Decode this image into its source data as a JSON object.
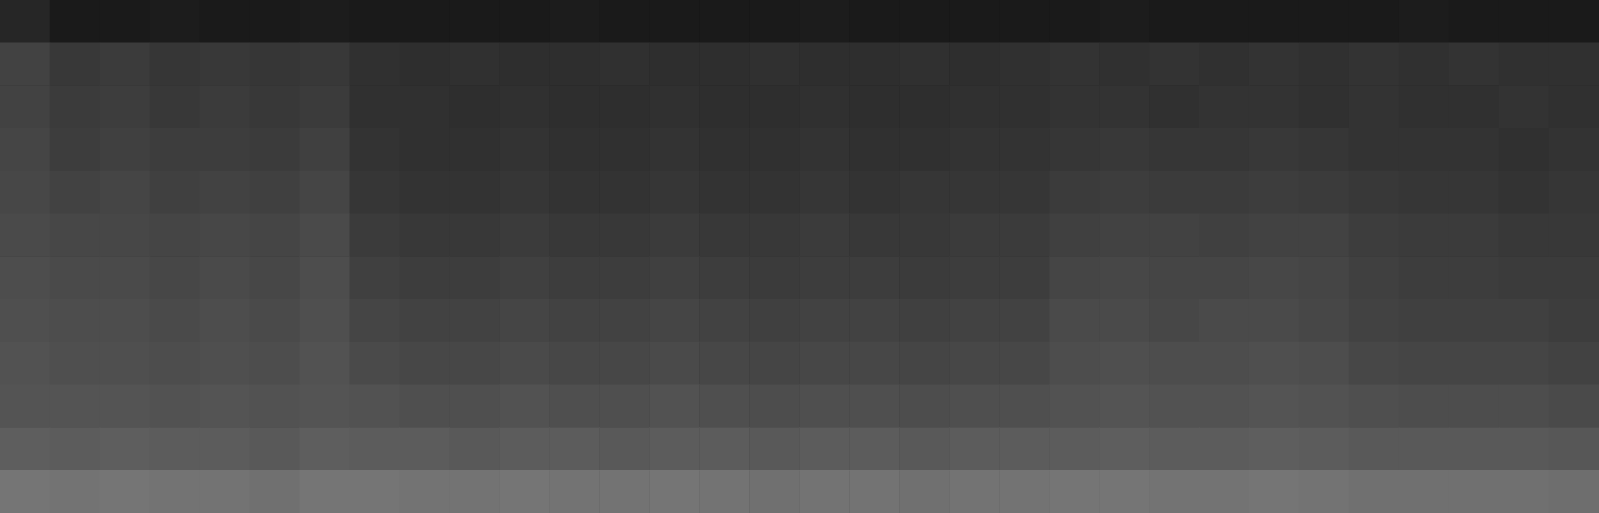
{
  "chart_data": {
    "type": "heatmap",
    "tick_labels": false,
    "grid": false,
    "zlim": [
      0,
      10
    ],
    "cells": [
      [
        1.5,
        1.0,
        1.0,
        1.1,
        1.0,
        1.0,
        1.1,
        1.0,
        1.0,
        1.0,
        1.0,
        1.1,
        1.0,
        1.0,
        1.0,
        1.0,
        1.1,
        1.0,
        1.0,
        1.0,
        1.0,
        1.0,
        1.1,
        1.0,
        1.0,
        1.0,
        1.0,
        1.0,
        1.1,
        1.0,
        1.0,
        1.0
      ],
      [
        2.6,
        2.2,
        2.3,
        2.1,
        2.2,
        2.1,
        2.2,
        1.9,
        1.8,
        1.9,
        1.8,
        1.8,
        1.9,
        1.8,
        1.8,
        1.9,
        1.8,
        1.8,
        1.9,
        1.8,
        1.9,
        2.0,
        1.9,
        2.0,
        1.9,
        2.0,
        1.9,
        2.0,
        1.9,
        2.0,
        1.9,
        1.9
      ],
      [
        2.6,
        2.3,
        2.4,
        2.2,
        2.3,
        2.2,
        2.3,
        1.9,
        1.9,
        1.8,
        1.9,
        1.8,
        1.8,
        1.9,
        1.8,
        1.8,
        1.9,
        1.8,
        1.8,
        1.9,
        1.9,
        2.0,
        2.0,
        1.9,
        2.0,
        2.0,
        1.9,
        2.0,
        1.9,
        1.9,
        2.0,
        1.9
      ],
      [
        2.7,
        2.4,
        2.5,
        2.4,
        2.4,
        2.3,
        2.5,
        2.0,
        1.9,
        1.9,
        2.0,
        1.9,
        1.9,
        2.0,
        1.9,
        1.9,
        2.0,
        1.9,
        1.9,
        2.0,
        2.0,
        2.1,
        2.2,
        2.1,
        2.1,
        2.2,
        2.1,
        2.0,
        2.0,
        2.0,
        1.9,
        2.0
      ],
      [
        2.8,
        2.6,
        2.7,
        2.5,
        2.6,
        2.5,
        2.7,
        2.1,
        2.0,
        2.0,
        2.1,
        2.0,
        2.0,
        2.1,
        2.0,
        2.0,
        2.1,
        2.0,
        2.1,
        2.1,
        2.1,
        2.3,
        2.4,
        2.3,
        2.3,
        2.4,
        2.3,
        2.2,
        2.1,
        2.1,
        2.0,
        2.1
      ],
      [
        2.9,
        2.8,
        2.8,
        2.7,
        2.8,
        2.7,
        2.9,
        2.3,
        2.2,
        2.2,
        2.3,
        2.2,
        2.2,
        2.3,
        2.2,
        2.2,
        2.3,
        2.2,
        2.2,
        2.3,
        2.3,
        2.5,
        2.6,
        2.6,
        2.5,
        2.6,
        2.6,
        2.4,
        2.3,
        2.3,
        2.2,
        2.2
      ],
      [
        3.0,
        2.9,
        2.9,
        2.8,
        2.9,
        2.8,
        3.0,
        2.5,
        2.4,
        2.4,
        2.5,
        2.4,
        2.4,
        2.5,
        2.4,
        2.3,
        2.4,
        2.4,
        2.3,
        2.4,
        2.4,
        2.7,
        2.8,
        2.7,
        2.7,
        2.8,
        2.7,
        2.5,
        2.4,
        2.4,
        2.3,
        2.3
      ],
      [
        3.1,
        3.0,
        3.0,
        2.9,
        3.0,
        2.9,
        3.1,
        2.7,
        2.6,
        2.6,
        2.7,
        2.6,
        2.6,
        2.7,
        2.6,
        2.5,
        2.6,
        2.6,
        2.5,
        2.6,
        2.6,
        2.9,
        2.9,
        2.8,
        2.9,
        2.9,
        2.8,
        2.6,
        2.5,
        2.5,
        2.5,
        2.4
      ],
      [
        3.2,
        3.1,
        3.1,
        3.0,
        3.1,
        3.0,
        3.2,
        2.9,
        2.8,
        2.8,
        2.9,
        2.8,
        2.8,
        2.9,
        2.8,
        2.7,
        2.8,
        2.8,
        2.7,
        2.8,
        2.8,
        3.0,
        3.1,
        3.0,
        3.0,
        3.1,
        3.0,
        2.8,
        2.7,
        2.7,
        2.7,
        2.6
      ],
      [
        3.3,
        3.3,
        3.3,
        3.2,
        3.3,
        3.2,
        3.3,
        3.2,
        3.1,
        3.1,
        3.2,
        3.1,
        3.1,
        3.2,
        3.1,
        3.0,
        3.1,
        3.1,
        3.0,
        3.1,
        3.1,
        3.2,
        3.3,
        3.2,
        3.2,
        3.3,
        3.2,
        3.1,
        3.0,
        3.0,
        3.0,
        2.9
      ],
      [
        3.7,
        3.6,
        3.7,
        3.6,
        3.6,
        3.5,
        3.7,
        3.6,
        3.6,
        3.5,
        3.6,
        3.6,
        3.5,
        3.6,
        3.6,
        3.5,
        3.6,
        3.6,
        3.5,
        3.6,
        3.6,
        3.6,
        3.7,
        3.6,
        3.6,
        3.7,
        3.6,
        3.5,
        3.5,
        3.5,
        3.5,
        3.4
      ],
      [
        4.6,
        4.5,
        4.6,
        4.5,
        4.5,
        4.4,
        4.6,
        4.6,
        4.5,
        4.5,
        4.6,
        4.5,
        4.5,
        4.6,
        4.5,
        4.4,
        4.5,
        4.5,
        4.4,
        4.5,
        4.5,
        4.6,
        4.6,
        4.5,
        4.5,
        4.6,
        4.5,
        4.4,
        4.4,
        4.4,
        4.4,
        4.3
      ]
    ]
  }
}
